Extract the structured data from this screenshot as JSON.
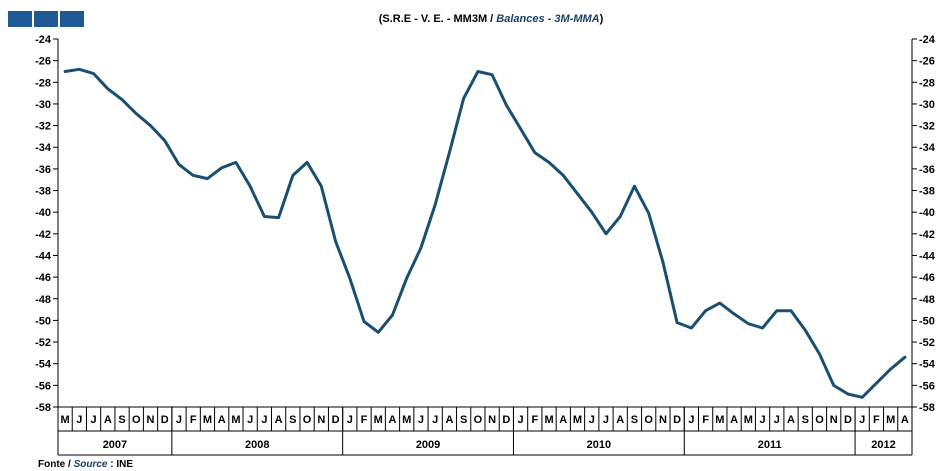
{
  "logo": {
    "blocks": 3,
    "color": "#1f5a96"
  },
  "title": {
    "main": "(S.R.E - V. E. - MM3M / ",
    "accent": "Balances - 3M-MMA",
    "close": ")"
  },
  "source": {
    "prefix": "Fonte / ",
    "accent": "Source",
    "suffix": " : INE"
  },
  "colors": {
    "line": "#1b4f72",
    "accent": "#1b3f67"
  },
  "chart_data": {
    "type": "line",
    "title": "(S.R.E - V. E. - MM3M / Balances - 3M-MMA)",
    "ylim": [
      -58,
      -24
    ],
    "yticks": [
      -24,
      -26,
      -28,
      -30,
      -32,
      -34,
      -36,
      -38,
      -40,
      -42,
      -44,
      -46,
      -48,
      -50,
      -52,
      -54,
      -56,
      -58
    ],
    "x": [
      "M",
      "J",
      "J",
      "A",
      "S",
      "O",
      "N",
      "D",
      "J",
      "F",
      "M",
      "A",
      "M",
      "J",
      "J",
      "A",
      "S",
      "O",
      "N",
      "D",
      "J",
      "F",
      "M",
      "A",
      "M",
      "J",
      "J",
      "A",
      "S",
      "O",
      "N",
      "D",
      "J",
      "F",
      "M",
      "A",
      "M",
      "J",
      "J",
      "A",
      "S",
      "O",
      "N",
      "D",
      "J",
      "F",
      "M",
      "A",
      "M",
      "J",
      "J",
      "A",
      "S",
      "O",
      "N",
      "D",
      "J",
      "F",
      "M",
      "A"
    ],
    "years": [
      {
        "label": "2007",
        "start": 0,
        "end": 8
      },
      {
        "label": "2008",
        "start": 8,
        "end": 20
      },
      {
        "label": "2009",
        "start": 20,
        "end": 32
      },
      {
        "label": "2010",
        "start": 32,
        "end": 44
      },
      {
        "label": "2011",
        "start": 44,
        "end": 56
      },
      {
        "label": "2012",
        "start": 56,
        "end": 60
      }
    ],
    "series": [
      {
        "values": [
          -27.0,
          -26.8,
          -27.2,
          -28.6,
          -29.6,
          -30.9,
          -32.0,
          -33.4,
          -35.6,
          -36.6,
          -36.9,
          -35.9,
          -35.4,
          -37.6,
          -40.4,
          -40.5,
          -36.6,
          -35.4,
          -37.6,
          -42.7,
          -46.1,
          -50.1,
          -51.1,
          -49.5,
          -46.1,
          -43.3,
          -39.3,
          -34.5,
          -29.5,
          -27.0,
          -27.3,
          -30.1,
          -32.3,
          -34.5,
          -35.4,
          -36.6,
          -38.3,
          -40.0,
          -42.0,
          -40.4,
          -37.6,
          -40.1,
          -44.6,
          -50.2,
          -50.7,
          -49.1,
          -48.4,
          -49.4,
          -50.3,
          -50.7,
          -49.1,
          -49.1,
          -50.9,
          -53.1,
          -56.0,
          -56.8,
          -57.1,
          -55.8,
          -54.5,
          -53.4
        ]
      }
    ]
  }
}
